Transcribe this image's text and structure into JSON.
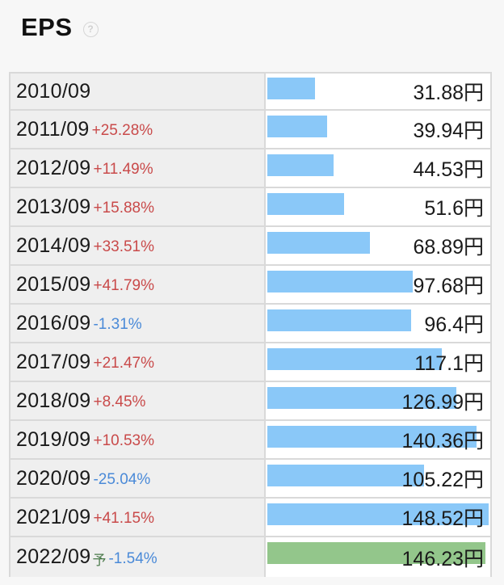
{
  "header": {
    "title": "EPS",
    "help_icon": "question-circle-icon",
    "help_glyph": "?"
  },
  "colors": {
    "bar": "#8ac8f8",
    "bar_forecast": "#93c68b",
    "change_positive": "#c94a4a",
    "change_negative": "#4a8ad8"
  },
  "chart_data": {
    "type": "bar",
    "title": "EPS",
    "unit": "円",
    "forecast_marker": "予",
    "categories": [
      "2010/09",
      "2011/09",
      "2012/09",
      "2013/09",
      "2014/09",
      "2015/09",
      "2016/09",
      "2017/09",
      "2018/09",
      "2019/09",
      "2020/09",
      "2021/09",
      "2022/09"
    ],
    "values": [
      31.88,
      39.94,
      44.53,
      51.6,
      68.89,
      97.68,
      96.4,
      117.1,
      126.99,
      140.36,
      105.22,
      148.52,
      146.23
    ],
    "value_labels": [
      "31.88円",
      "39.94円",
      "44.53円",
      "51.6円",
      "68.89円",
      "97.68円",
      "96.4円",
      "117.1円",
      "126.99円",
      "140.36円",
      "105.22円",
      "148.52円",
      "146.23円"
    ],
    "changes": [
      "",
      "+25.28%",
      "+11.49%",
      "+15.88%",
      "+33.51%",
      "+41.79%",
      "-1.31%",
      "+21.47%",
      "+8.45%",
      "+10.53%",
      "-25.04%",
      "+41.15%",
      "-1.54%"
    ],
    "forecast": [
      false,
      false,
      false,
      false,
      false,
      false,
      false,
      false,
      false,
      false,
      false,
      false,
      true
    ],
    "xlim": [
      0,
      148.52
    ]
  }
}
